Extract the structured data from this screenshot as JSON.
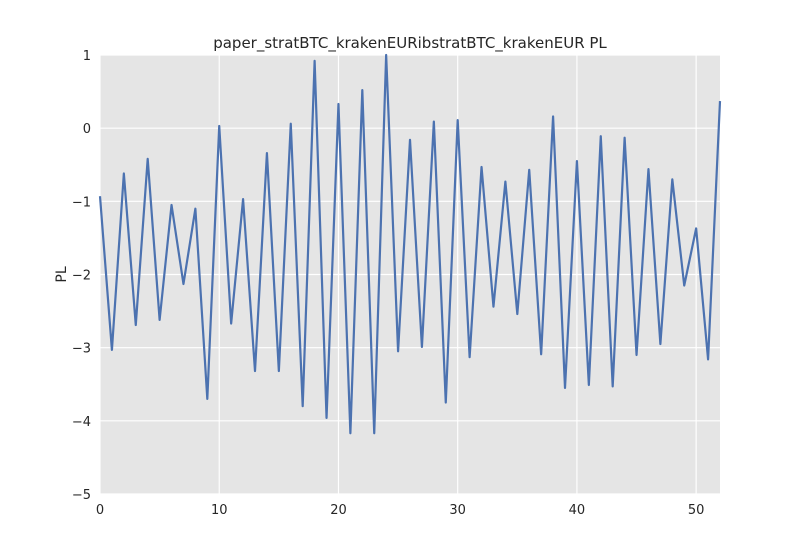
{
  "chart_data": {
    "type": "line",
    "title": "paper_stratBTC_krakenEURibstratBTC_krakenEUR PL",
    "xlabel": "",
    "ylabel": "PL",
    "xlim": [
      0,
      52
    ],
    "ylim": [
      -5,
      1
    ],
    "xticks": [
      0,
      10,
      20,
      30,
      40,
      50
    ],
    "yticks": [
      -5,
      -4,
      -3,
      -2,
      -1,
      0,
      1
    ],
    "grid": true,
    "legend": "none",
    "colors": {
      "background": "#e5e5e5",
      "grid": "#ffffff",
      "line": "#4c72b0"
    },
    "series": [
      {
        "x": [
          0,
          1,
          2,
          3,
          4,
          5,
          6,
          7,
          8,
          9,
          10,
          11,
          12,
          13,
          14,
          15,
          16,
          17,
          18,
          19,
          20,
          21,
          22,
          23,
          24,
          25,
          26,
          27,
          28,
          29,
          30,
          31,
          32,
          33,
          34,
          35,
          36,
          37,
          38,
          39,
          40,
          41,
          42,
          43,
          44,
          45,
          46,
          47,
          48,
          49,
          50,
          51,
          52
        ],
        "values": [
          -0.93,
          -3.03,
          -0.62,
          -2.69,
          -0.42,
          -2.62,
          -1.05,
          -2.13,
          -1.1,
          -3.7,
          0.03,
          -2.67,
          -0.97,
          -3.32,
          -0.34,
          -3.32,
          0.06,
          -3.8,
          0.92,
          -3.96,
          0.33,
          -4.17,
          0.52,
          -4.17,
          1.0,
          -3.05,
          -0.16,
          -2.99,
          0.09,
          -3.75,
          0.11,
          -3.13,
          -0.53,
          -2.44,
          -0.73,
          -2.54,
          -0.57,
          -3.09,
          0.16,
          -3.55,
          -0.45,
          -3.51,
          -0.11,
          -3.53,
          -0.13,
          -3.1,
          -0.56,
          -2.95,
          -0.7,
          -2.15,
          -1.37,
          -3.16,
          0.37
        ]
      }
    ]
  }
}
